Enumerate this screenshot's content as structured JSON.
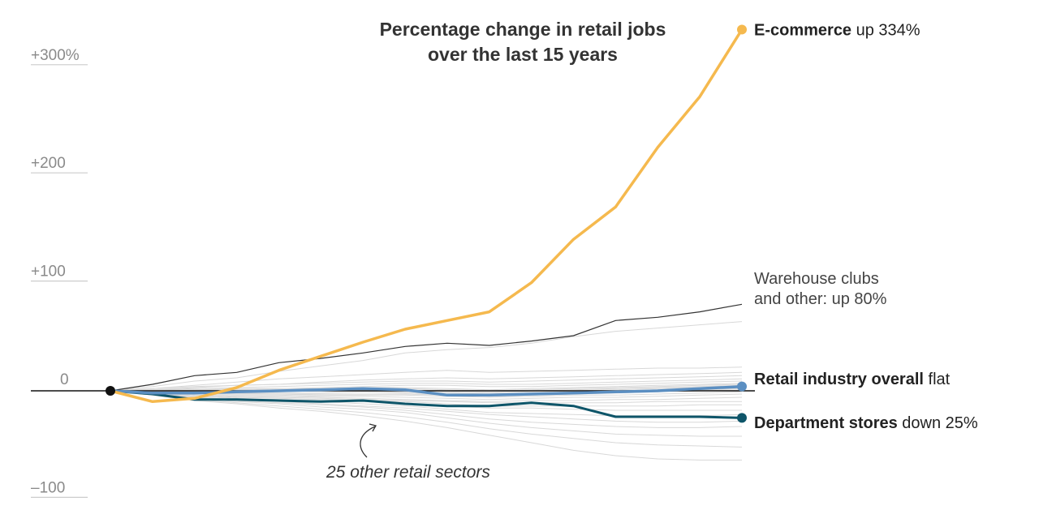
{
  "chart_data": {
    "type": "line",
    "title_lines": [
      "Percentage change in retail jobs",
      "over the last 15 years"
    ],
    "ylim": [
      -100,
      334
    ],
    "y_ticks": [
      {
        "value": 300,
        "label": "+300%"
      },
      {
        "value": 200,
        "label": "+200"
      },
      {
        "value": 100,
        "label": "+100"
      },
      {
        "value": 0,
        "label": "0"
      },
      {
        "value": -100,
        "label": "–100"
      }
    ],
    "x_count": 16,
    "series": [
      {
        "name": "E-commerce",
        "suffix": " up 334%",
        "color": "#f5b94e",
        "values": [
          0,
          -10,
          -7,
          3,
          19,
          32,
          45,
          57,
          65,
          73,
          100,
          140,
          170,
          225,
          272,
          334
        ]
      },
      {
        "name": "Retail industry overall",
        "suffix": " flat",
        "color": "#5b8fc2",
        "values": [
          0,
          -2,
          -2,
          -1,
          0,
          1,
          2,
          1,
          -4,
          -4,
          -3,
          -2,
          -1,
          0,
          2,
          4
        ]
      },
      {
        "name": "Department stores",
        "suffix": " down 25%",
        "color": "#0e5569",
        "values": [
          0,
          -3,
          -8,
          -8,
          -9,
          -10,
          -9,
          -12,
          -14,
          -14,
          -11,
          -14,
          -24,
          -24,
          -24,
          -25
        ]
      },
      {
        "name_lines": [
          "Warehouse clubs",
          "and other: up 80%"
        ],
        "color": "#333333",
        "values": [
          0,
          6,
          14,
          17,
          26,
          30,
          35,
          41,
          44,
          42,
          46,
          51,
          65,
          68,
          73,
          80
        ]
      }
    ],
    "other_sectors": {
      "label": "25 other retail sectors",
      "color": "#d8d8d8",
      "lines": [
        [
          0,
          4,
          9,
          12,
          18,
          23,
          28,
          35,
          38,
          40,
          44,
          50,
          55,
          58,
          61,
          64
        ],
        [
          0,
          2,
          5,
          8,
          11,
          13,
          15,
          17,
          19,
          17,
          18,
          19,
          20,
          21,
          21,
          22
        ],
        [
          0,
          1,
          3,
          5,
          6,
          8,
          10,
          11,
          12,
          11,
          12,
          13,
          14,
          15,
          16,
          17
        ],
        [
          0,
          2,
          4,
          5,
          6,
          7,
          8,
          9,
          9,
          8,
          9,
          10,
          11,
          12,
          13,
          14
        ],
        [
          0,
          1,
          2,
          3,
          4,
          5,
          6,
          7,
          7,
          6,
          6,
          7,
          8,
          9,
          10,
          11
        ],
        [
          0,
          0,
          1,
          2,
          2,
          3,
          4,
          5,
          5,
          4,
          4,
          5,
          6,
          7,
          8,
          9
        ],
        [
          0,
          1,
          1,
          1,
          2,
          2,
          3,
          3,
          2,
          1,
          2,
          3,
          4,
          5,
          6,
          7
        ],
        [
          0,
          0,
          0,
          1,
          1,
          1,
          2,
          2,
          1,
          0,
          1,
          2,
          3,
          4,
          5,
          6
        ],
        [
          0,
          -1,
          0,
          0,
          1,
          1,
          1,
          1,
          0,
          -1,
          0,
          1,
          2,
          3,
          4,
          5
        ],
        [
          0,
          -1,
          -1,
          0,
          0,
          0,
          0,
          0,
          -1,
          -2,
          -1,
          0,
          1,
          2,
          3,
          4
        ],
        [
          0,
          0,
          -1,
          -1,
          -1,
          0,
          0,
          -1,
          -2,
          -3,
          -2,
          -1,
          0,
          1,
          2,
          3
        ],
        [
          0,
          -1,
          -2,
          -2,
          -2,
          -2,
          -1,
          -2,
          -3,
          -4,
          -3,
          -2,
          -1,
          0,
          1,
          2
        ],
        [
          0,
          -1,
          -2,
          -2,
          -3,
          -3,
          -3,
          -3,
          -4,
          -5,
          -4,
          -3,
          -2,
          -1,
          0,
          1
        ],
        [
          0,
          -1,
          -2,
          -3,
          -3,
          -4,
          -4,
          -4,
          -5,
          -6,
          -5,
          -4,
          -4,
          -3,
          -2,
          -1
        ],
        [
          0,
          -2,
          -3,
          -4,
          -4,
          -5,
          -5,
          -6,
          -7,
          -8,
          -7,
          -6,
          -6,
          -5,
          -4,
          -3
        ],
        [
          0,
          -2,
          -4,
          -5,
          -5,
          -6,
          -7,
          -8,
          -9,
          -10,
          -9,
          -9,
          -8,
          -8,
          -7,
          -6
        ],
        [
          0,
          -2,
          -4,
          -5,
          -6,
          -7,
          -8,
          -9,
          -10,
          -11,
          -11,
          -11,
          -11,
          -10,
          -10,
          -10
        ],
        [
          0,
          -2,
          -4,
          -6,
          -7,
          -8,
          -9,
          -10,
          -12,
          -14,
          -14,
          -14,
          -14,
          -14,
          -13,
          -13
        ],
        [
          0,
          -2,
          -5,
          -7,
          -8,
          -9,
          -10,
          -12,
          -14,
          -16,
          -16,
          -17,
          -18,
          -18,
          -18,
          -18
        ],
        [
          0,
          -3,
          -5,
          -7,
          -9,
          -10,
          -12,
          -14,
          -17,
          -20,
          -21,
          -22,
          -23,
          -23,
          -23,
          -22
        ],
        [
          0,
          -3,
          -6,
          -8,
          -10,
          -12,
          -14,
          -16,
          -19,
          -22,
          -24,
          -26,
          -28,
          -29,
          -29,
          -28
        ],
        [
          0,
          -3,
          -6,
          -9,
          -11,
          -13,
          -15,
          -18,
          -22,
          -26,
          -29,
          -31,
          -33,
          -34,
          -34,
          -33
        ],
        [
          0,
          -3,
          -7,
          -10,
          -12,
          -15,
          -17,
          -20,
          -25,
          -30,
          -34,
          -37,
          -40,
          -41,
          -42,
          -42
        ],
        [
          0,
          -4,
          -8,
          -11,
          -14,
          -17,
          -20,
          -24,
          -29,
          -35,
          -40,
          -44,
          -48,
          -50,
          -51,
          -52
        ],
        [
          0,
          -4,
          -9,
          -12,
          -16,
          -19,
          -23,
          -28,
          -34,
          -41,
          -48,
          -55,
          -60,
          -63,
          -64,
          -64
        ]
      ]
    }
  }
}
